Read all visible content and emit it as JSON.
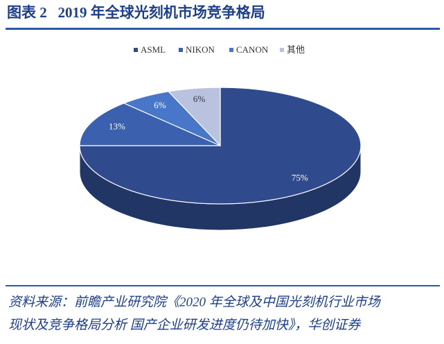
{
  "chart_data": {
    "type": "pie3d",
    "title": "图表 2   2019 年全球光刻机市场竞争格局",
    "categories": [
      "ASML",
      "NIKON",
      "CANON",
      "其他"
    ],
    "values": [
      75,
      13,
      6,
      6
    ],
    "value_labels": [
      "75%",
      "13%",
      "6%",
      "6%"
    ],
    "colors": [
      "#2f4b8e",
      "#3a60ae",
      "#4876c8",
      "#b9c2df"
    ],
    "legend": "top",
    "source": [
      "资料来源：前瞻产业研究院《2020 年全球及中国光刻机行业市场",
      "现状及竞争格局分析 国产企业研发进度仍待加快》，华创证券"
    ]
  }
}
